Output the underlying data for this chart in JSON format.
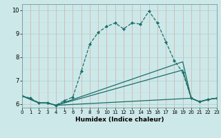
{
  "xlabel": "Humidex (Indice chaleur)",
  "xlim": [
    0,
    23
  ],
  "ylim": [
    5.85,
    10.25
  ],
  "yticks": [
    6,
    7,
    8,
    9,
    10
  ],
  "xticks": [
    0,
    1,
    2,
    3,
    4,
    5,
    6,
    7,
    8,
    9,
    10,
    11,
    12,
    13,
    14,
    15,
    16,
    17,
    18,
    19,
    20,
    21,
    22,
    23
  ],
  "bg_color": "#cde8e8",
  "line_color": "#1a6e6a",
  "grid_color_major": "#aad0d0",
  "grid_color_minor": "#c0dcdc",
  "lines": [
    {
      "x": [
        0,
        1,
        2,
        3,
        4,
        5,
        6,
        7,
        8,
        9,
        10,
        11,
        12,
        13,
        14,
        15,
        16,
        17,
        18,
        19,
        20,
        21,
        22,
        23
      ],
      "y": [
        6.35,
        6.25,
        6.05,
        6.05,
        5.95,
        6.15,
        6.3,
        7.4,
        8.55,
        9.05,
        9.3,
        9.45,
        9.2,
        9.45,
        9.4,
        9.95,
        9.45,
        8.65,
        7.85,
        7.35,
        6.25,
        6.1,
        6.2,
        6.25
      ],
      "marker": "D",
      "markersize": 2.0,
      "linewidth": 0.9,
      "linestyle": "--",
      "has_marker": true
    },
    {
      "x": [
        0,
        2,
        3,
        4,
        19,
        20,
        21,
        22,
        23
      ],
      "y": [
        6.35,
        6.05,
        6.05,
        5.95,
        7.8,
        6.25,
        6.1,
        6.2,
        6.25
      ],
      "marker": null,
      "markersize": 0,
      "linewidth": 0.9,
      "linestyle": "-",
      "has_marker": false
    },
    {
      "x": [
        0,
        2,
        3,
        4,
        19,
        20,
        21,
        22,
        23
      ],
      "y": [
        6.35,
        6.05,
        6.05,
        5.95,
        7.45,
        6.25,
        6.1,
        6.2,
        6.25
      ],
      "marker": null,
      "markersize": 0,
      "linewidth": 0.9,
      "linestyle": "-",
      "has_marker": false
    },
    {
      "x": [
        0,
        2,
        3,
        4,
        20,
        21,
        22,
        23
      ],
      "y": [
        6.35,
        6.05,
        6.05,
        5.95,
        6.25,
        6.1,
        6.2,
        6.25
      ],
      "marker": null,
      "markersize": 0,
      "linewidth": 0.9,
      "linestyle": "-",
      "has_marker": false
    }
  ]
}
